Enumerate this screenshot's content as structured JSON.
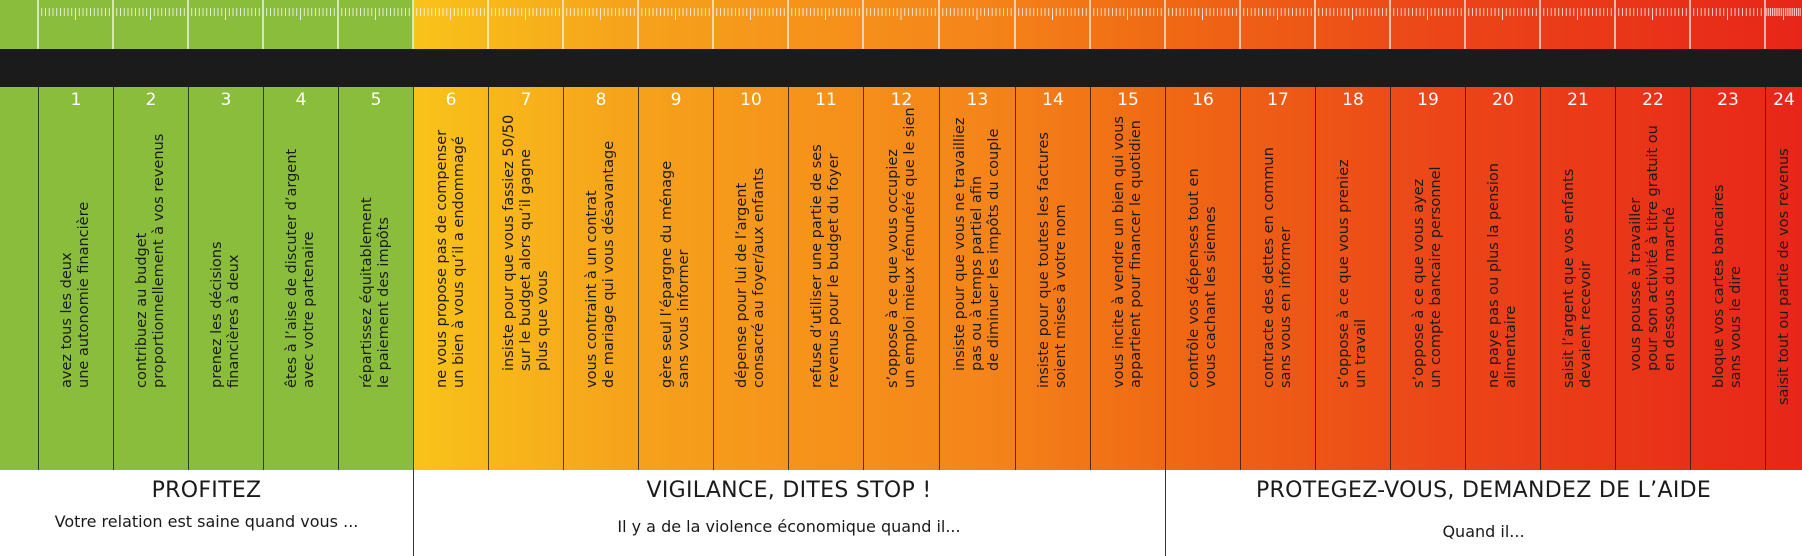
{
  "colors": {
    "green": "#8bbd3c",
    "yellow": "#f9c31a",
    "orange": "#f5851a",
    "red": "#e72619",
    "band": "#1b1b1b"
  },
  "sections": [
    {
      "title": "PROFITEZ",
      "subtitle": "Votre relation est saine quand vous ..."
    },
    {
      "title": "VIGILANCE, DITES STOP !",
      "subtitle": "Il y a de la violence économique quand il..."
    },
    {
      "title": "PROTEGEZ-VOUS, DEMANDEZ DE L’AIDE",
      "subtitle": "Quand il..."
    }
  ],
  "items": [
    {
      "number": "1",
      "text": "avez tous les deux\nune autonomie financière"
    },
    {
      "number": "2",
      "text": "contribuez au budget\nproportionnellement à vos revenus"
    },
    {
      "number": "3",
      "text": "prenez les décisions\nfinancières à deux"
    },
    {
      "number": "4",
      "text": "êtes à l’aise de discuter d’argent\navec votre partenaire"
    },
    {
      "number": "5",
      "text": "répartissez équitablement\nle paiement des impôts"
    },
    {
      "number": "6",
      "text": "ne vous propose pas de compenser\nun bien à vous qu’il a endommagé"
    },
    {
      "number": "7",
      "text": "insiste pour que vous fassiez 50/50\nsur le budget alors qu’il gagne\nplus que vous"
    },
    {
      "number": "8",
      "text": "vous contraint à un contrat\nde mariage qui vous désavantage"
    },
    {
      "number": "9",
      "text": "gère seul l’épargne du ménage\nsans vous informer"
    },
    {
      "number": "10",
      "text": "dépense pour lui de l’argent\nconsacré au foyer/aux enfants"
    },
    {
      "number": "11",
      "text": "refuse d’utiliser une partie de ses\nrevenus pour le budget du foyer"
    },
    {
      "number": "12",
      "text": "s’oppose à ce que vous occupiez\nun emploi mieux rémunéré que le sien"
    },
    {
      "number": "13",
      "text": "insiste pour que vous ne travailliez\npas ou à temps partiel afin\nde diminuer les impôts du couple"
    },
    {
      "number": "14",
      "text": "insiste pour que toutes les factures\nsoient mises à votre nom"
    },
    {
      "number": "15",
      "text": "vous incite à vendre un bien qui vous\nappartient pour financer le quotidien"
    },
    {
      "number": "16",
      "text": "contrôle vos dépenses tout en\nvous cachant les siennes"
    },
    {
      "number": "17",
      "text": "contracte des dettes en commun\nsans vous en informer"
    },
    {
      "number": "18",
      "text": "s’oppose à ce que vous preniez\nun travail"
    },
    {
      "number": "19",
      "text": "s’oppose à ce que vous ayez\nun compte bancaire personnel"
    },
    {
      "number": "20",
      "text": "ne paye pas ou plus la pension\nalimentaire"
    },
    {
      "number": "21",
      "text": "saisit l’argent que vos enfants\ndevaient recevoir"
    },
    {
      "number": "22",
      "text": "vous pousse à travailler\npour son activité à titre gratuit ou\nen dessous du marché"
    },
    {
      "number": "23",
      "text": "bloque vos cartes bancaires\nsans vous le dire"
    },
    {
      "number": "24",
      "text": "saisit tout ou partie de vos revenus"
    }
  ]
}
